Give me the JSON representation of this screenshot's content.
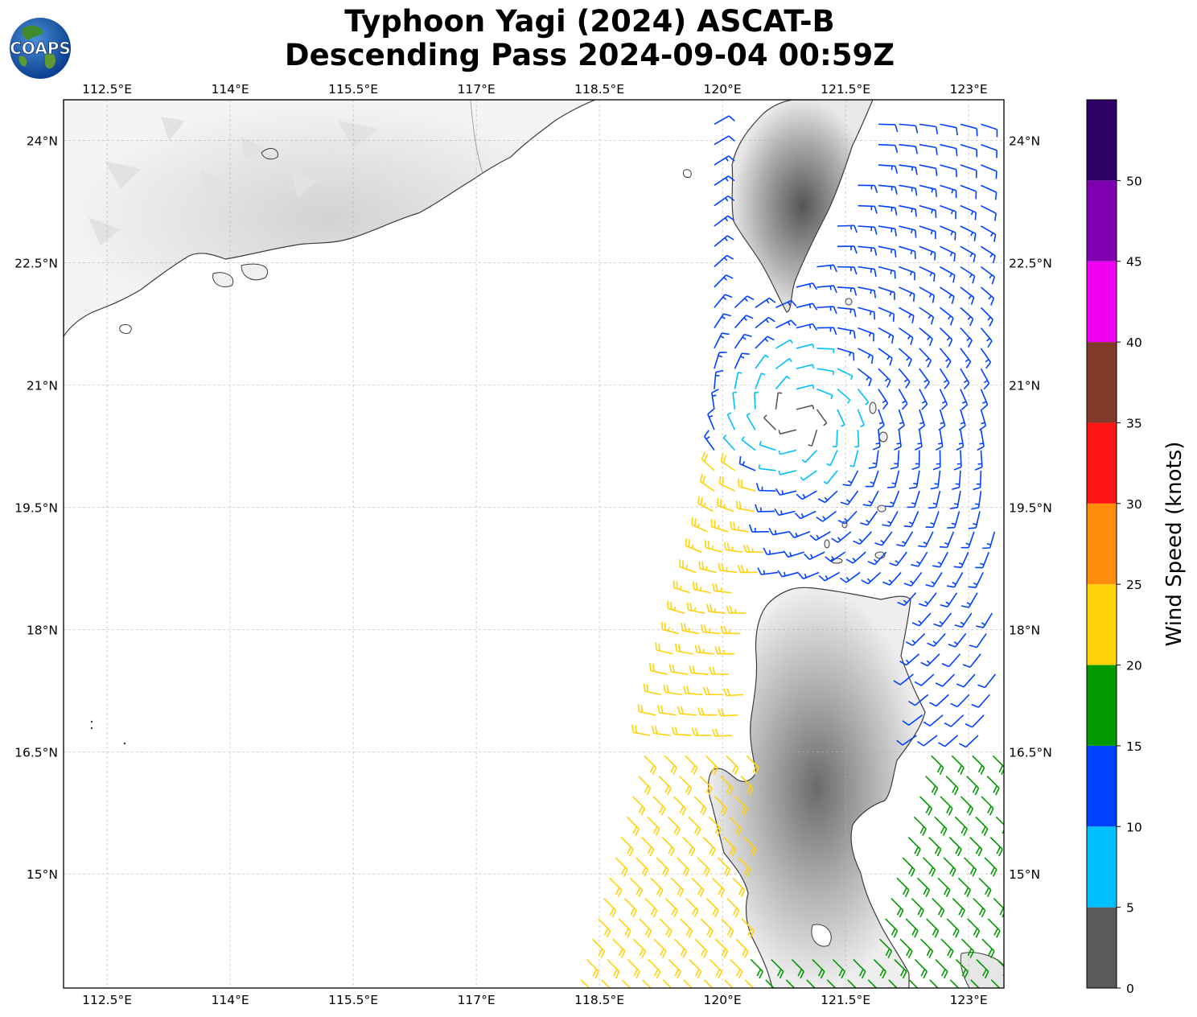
{
  "title": {
    "line1": "Typhoon Yagi (2024) ASCAT-B",
    "line2": "Descending Pass 2024-09-04 00:59Z"
  },
  "logo": {
    "text": "COAPS",
    "icon": "globe-logo-icon"
  },
  "map": {
    "lon_min": 111.97,
    "lon_max": 123.43,
    "lat_min": 13.6,
    "lat_max": 24.5,
    "lon_ticks": [
      "112.5°E",
      "114°E",
      "115.5°E",
      "117°E",
      "118.5°E",
      "120°E",
      "121.5°E",
      "123°E"
    ],
    "lon_tick_values": [
      112.5,
      114,
      115.5,
      117,
      118.5,
      120,
      121.5,
      123
    ],
    "lat_ticks": [
      "24°N",
      "22.5°N",
      "21°N",
      "19.5°N",
      "18°N",
      "16.5°N",
      "15°N"
    ],
    "lat_tick_values": [
      24,
      22.5,
      21,
      19.5,
      18,
      16.5,
      15
    ],
    "gridlines": true,
    "land_shading": "grayscale topography",
    "features": [
      "China coast",
      "Hong Kong / Pearl River Delta",
      "Taiwan",
      "Luzon",
      "Babuyan Islands"
    ],
    "storm_center_approx": {
      "lon": 120.9,
      "lat": 20.6
    }
  },
  "colorbar": {
    "label": "Wind Speed (knots)",
    "ticks": [
      "0",
      "5",
      "10",
      "15",
      "20",
      "25",
      "30",
      "35",
      "40",
      "45",
      "50"
    ],
    "bins": [
      {
        "min": 0,
        "max": 5,
        "color": "#5a5a5a"
      },
      {
        "min": 5,
        "max": 10,
        "color": "#00bfff"
      },
      {
        "min": 10,
        "max": 15,
        "color": "#0040ff"
      },
      {
        "min": 15,
        "max": 20,
        "color": "#009900"
      },
      {
        "min": 20,
        "max": 25,
        "color": "#ffd20a"
      },
      {
        "min": 25,
        "max": 30,
        "color": "#ff8c0a"
      },
      {
        "min": 30,
        "max": 35,
        "color": "#ff1414"
      },
      {
        "min": 35,
        "max": 40,
        "color": "#7f3a2a"
      },
      {
        "min": 40,
        "max": 45,
        "color": "#f000f0"
      },
      {
        "min": 45,
        "max": 50,
        "color": "#7f00b0"
      },
      {
        "min": 50,
        "max": 55,
        "color": "#2c0064"
      }
    ]
  }
}
